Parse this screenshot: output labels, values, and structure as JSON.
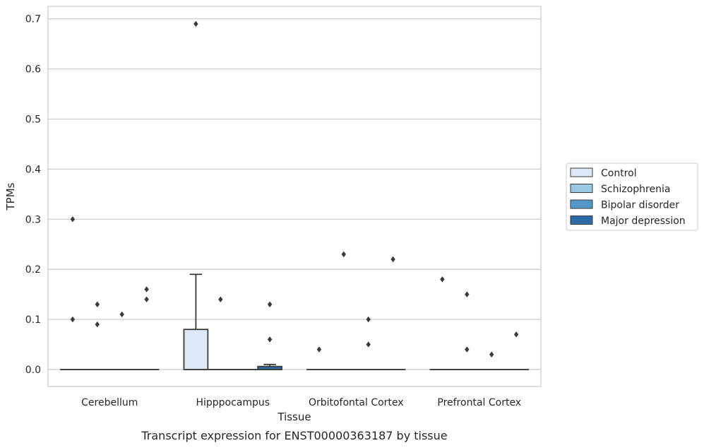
{
  "chart_data": {
    "type": "box",
    "caption": "Transcript expression for ENST00000363187 by tissue",
    "xlabel": "Tissue",
    "ylabel": "TPMs",
    "ylim": [
      -0.034,
      0.725
    ],
    "yticks": [
      0.0,
      0.1,
      0.2,
      0.3,
      0.4,
      0.5,
      0.6,
      0.7
    ],
    "ytick_labels": [
      "0.0",
      "0.1",
      "0.2",
      "0.3",
      "0.4",
      "0.5",
      "0.6",
      "0.7"
    ],
    "grid": "horizontal",
    "legend_position": "right",
    "categories": [
      "Cerebellum",
      "Hipppocampus",
      "Orbitofontal Cortex",
      "Prefrontal Cortex"
    ],
    "series": [
      {
        "name": "Control",
        "color": "#dbe9f6",
        "boxes": [
          {
            "q1": 0,
            "median": 0,
            "q3": 0,
            "whisker_low": 0,
            "whisker_high": 0,
            "outliers": [
              0.1,
              0.3
            ]
          },
          {
            "q1": 0,
            "median": 0,
            "q3": 0.08,
            "whisker_low": 0,
            "whisker_high": 0.19,
            "outliers": [
              0.69
            ]
          },
          {
            "q1": 0,
            "median": 0,
            "q3": 0,
            "whisker_low": 0,
            "whisker_high": 0,
            "outliers": [
              0.04
            ]
          },
          {
            "q1": 0,
            "median": 0,
            "q3": 0,
            "whisker_low": 0,
            "whisker_high": 0,
            "outliers": [
              0.18
            ]
          }
        ]
      },
      {
        "name": "Schizophrenia",
        "color": "#9ac8e0",
        "boxes": [
          {
            "q1": 0,
            "median": 0,
            "q3": 0,
            "whisker_low": 0,
            "whisker_high": 0,
            "outliers": [
              0.09,
              0.13
            ]
          },
          {
            "q1": 0,
            "median": 0,
            "q3": 0,
            "whisker_low": 0,
            "whisker_high": 0,
            "outliers": [
              0.14
            ]
          },
          {
            "q1": 0,
            "median": 0,
            "q3": 0,
            "whisker_low": 0,
            "whisker_high": 0,
            "outliers": [
              0.23
            ]
          },
          {
            "q1": 0,
            "median": 0,
            "q3": 0,
            "whisker_low": 0,
            "whisker_high": 0,
            "outliers": [
              0.04,
              0.15
            ]
          }
        ]
      },
      {
        "name": "Bipolar disorder",
        "color": "#5198c9",
        "boxes": [
          {
            "q1": 0,
            "median": 0,
            "q3": 0,
            "whisker_low": 0,
            "whisker_high": 0,
            "outliers": [
              0.11
            ]
          },
          {
            "q1": 0,
            "median": 0,
            "q3": 0,
            "whisker_low": 0,
            "whisker_high": 0,
            "outliers": []
          },
          {
            "q1": 0,
            "median": 0,
            "q3": 0,
            "whisker_low": 0,
            "whisker_high": 0,
            "outliers": [
              0.05,
              0.1
            ]
          },
          {
            "q1": 0,
            "median": 0,
            "q3": 0,
            "whisker_low": 0,
            "whisker_high": 0,
            "outliers": [
              0.03
            ]
          }
        ]
      },
      {
        "name": "Major depression",
        "color": "#2d6ba6",
        "boxes": [
          {
            "q1": 0,
            "median": 0,
            "q3": 0,
            "whisker_low": 0,
            "whisker_high": 0,
            "outliers": [
              0.14,
              0.16
            ]
          },
          {
            "q1": 0,
            "median": 0,
            "q3": 0.006,
            "whisker_low": 0,
            "whisker_high": 0.01,
            "outliers": [
              0.06,
              0.13
            ]
          },
          {
            "q1": 0,
            "median": 0,
            "q3": 0,
            "whisker_low": 0,
            "whisker_high": 0,
            "outliers": [
              0.22
            ]
          },
          {
            "q1": 0,
            "median": 0,
            "q3": 0,
            "whisker_low": 0,
            "whisker_high": 0,
            "outliers": [
              0.07
            ]
          }
        ]
      }
    ]
  }
}
